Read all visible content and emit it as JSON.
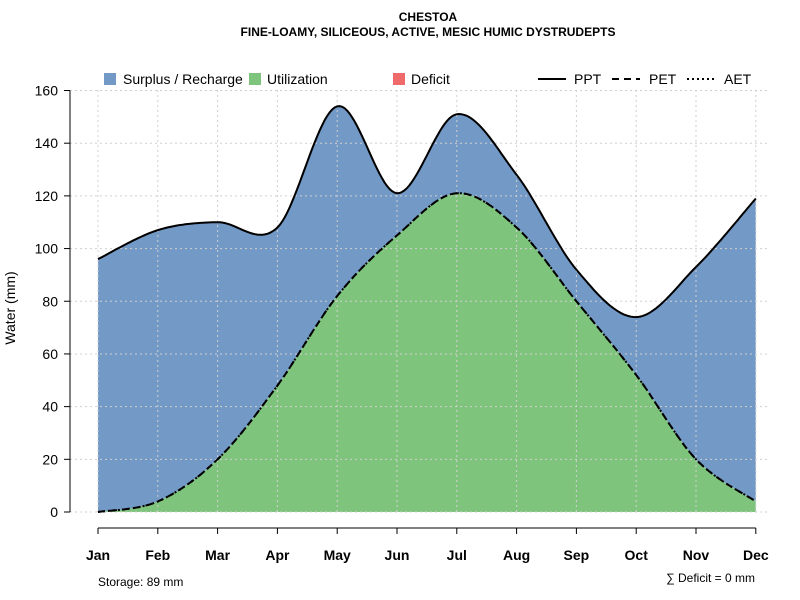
{
  "chart_data": {
    "type": "area",
    "title": "CHESTOA",
    "subtitle": "FINE-LOAMY, SILICEOUS, ACTIVE, MESIC HUMIC DYSTRUDEPTS",
    "xlabel": "",
    "ylabel": "Water (mm)",
    "ylim": [
      0,
      160
    ],
    "yticks": [
      0,
      20,
      40,
      60,
      80,
      100,
      120,
      140,
      160
    ],
    "grid": true,
    "categories": [
      "Jan",
      "Feb",
      "Mar",
      "Apr",
      "May",
      "Jun",
      "Jul",
      "Aug",
      "Sep",
      "Oct",
      "Nov",
      "Dec"
    ],
    "series": [
      {
        "name": "PPT",
        "style": "solid",
        "values": [
          96,
          107,
          110,
          108,
          154,
          121,
          151,
          128,
          92,
          74,
          93,
          119
        ]
      },
      {
        "name": "PET",
        "style": "dashed",
        "values": [
          0,
          4,
          20,
          48,
          82,
          105,
          121,
          108,
          80,
          52,
          20,
          4
        ]
      },
      {
        "name": "AET",
        "style": "dotted",
        "values": [
          0,
          4,
          20,
          48,
          82,
          105,
          121,
          108,
          80,
          52,
          20,
          4
        ]
      }
    ],
    "fills": [
      {
        "name": "Surplus / Recharge",
        "color": "#7399c6"
      },
      {
        "name": "Utilization",
        "color": "#7fc47c"
      },
      {
        "name": "Deficit",
        "color": "#ef6b6b"
      }
    ],
    "legend_position": "top",
    "storage_note": "Storage: 89 mm",
    "deficit_note": "∑ Deficit = 0 mm"
  }
}
